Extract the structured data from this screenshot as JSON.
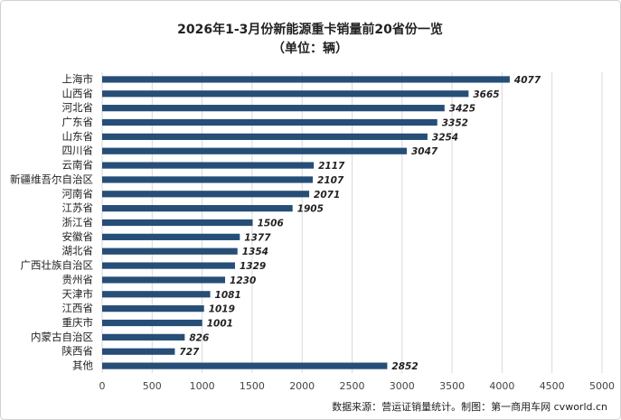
{
  "chart_data": {
    "type": "bar",
    "orientation": "horizontal",
    "title": "2026年1-3月份新能源重卡销量前20省份一览",
    "subtitle": "（单位：辆）",
    "categories": [
      "上海市",
      "山西省",
      "河北省",
      "广东省",
      "山东省",
      "四川省",
      "云南省",
      "新疆维吾尔自治区",
      "河南省",
      "江苏省",
      "浙江省",
      "安徽省",
      "湖北省",
      "广西壮族自治区",
      "贵州省",
      "天津市",
      "江西省",
      "重庆市",
      "内蒙古自治区",
      "陕西省",
      "其他"
    ],
    "values": [
      4077,
      3665,
      3425,
      3352,
      3254,
      3047,
      2117,
      2107,
      2071,
      1905,
      1506,
      1377,
      1354,
      1329,
      1230,
      1081,
      1019,
      1001,
      826,
      727,
      2852
    ],
    "color": "#264e77",
    "xlim": [
      0,
      5000
    ],
    "xticks": [
      0,
      500,
      1000,
      1500,
      2000,
      2500,
      3000,
      3500,
      4000,
      4500,
      5000
    ],
    "grid": true,
    "source": "数据来源：营运证销量统计。制图：第一商用车网 cvworld.cn"
  }
}
